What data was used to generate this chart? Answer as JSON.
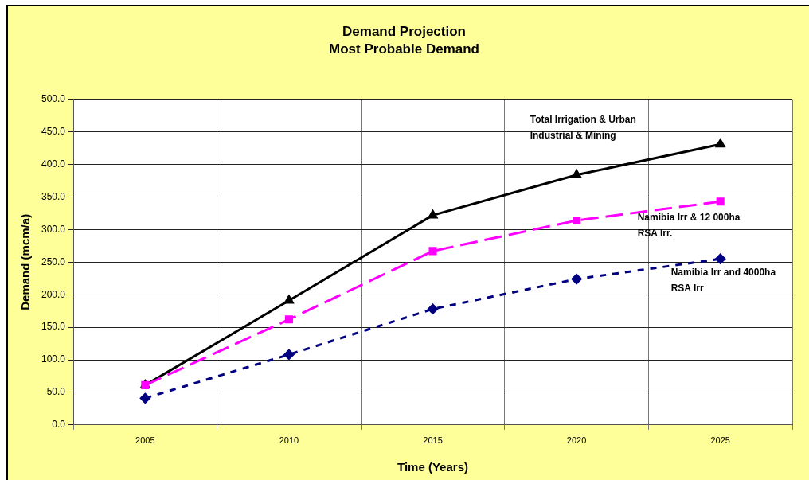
{
  "chart_data": {
    "type": "line",
    "title": "Demand Projection",
    "subtitle": "Most Probable Demand",
    "xlabel": "Time (Years)",
    "ylabel": "Demand (mcm/a)",
    "categories": [
      "2005",
      "2010",
      "2015",
      "2020",
      "2025"
    ],
    "ylim": [
      0,
      500
    ],
    "yticks": [
      {
        "value": 0,
        "label": "0.0"
      },
      {
        "value": 50,
        "label": "50.0"
      },
      {
        "value": 100,
        "label": "100.0"
      },
      {
        "value": 150,
        "label": "150.0"
      },
      {
        "value": 200,
        "label": "200.0"
      },
      {
        "value": 250,
        "label": "250.0"
      },
      {
        "value": 300,
        "label": "300.0"
      },
      {
        "value": 350,
        "label": "350.0"
      },
      {
        "value": 400,
        "label": "400.0"
      },
      {
        "value": 450,
        "label": "450.0"
      },
      {
        "value": 500,
        "label": "500.0"
      }
    ],
    "grid": true,
    "legend": false,
    "series": [
      {
        "name": "Total Irrigation & Urban Industrial & Mining",
        "color": "#000000",
        "marker": "triangle",
        "line_style": "solid",
        "values": [
          61,
          191,
          322,
          384,
          431
        ]
      },
      {
        "name": "Namibia Irr & 12 000ha RSA Irr.",
        "color": "#ff00ff",
        "marker": "square",
        "line_style": "dashed",
        "values": [
          61,
          162,
          267,
          314,
          343
        ]
      },
      {
        "name": "Namibia Irr and 4000ha RSA Irr",
        "color": "#000080",
        "marker": "diamond",
        "line_style": "dotted",
        "values": [
          41,
          108,
          178,
          224,
          255
        ]
      }
    ]
  }
}
